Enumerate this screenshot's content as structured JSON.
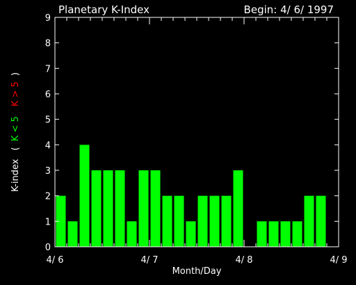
{
  "chart_data": {
    "type": "bar",
    "title": "Planetary K-Index",
    "begin_label": "Begin:  4/  6/ 1997",
    "xlabel": "Month/Day",
    "ylabel": "K-index",
    "legend_open": "(",
    "legend_close": ")",
    "legend": [
      {
        "label": "K < 5",
        "color": "#00ff00"
      },
      {
        "label": "K > 5",
        "color": "#ff0000"
      }
    ],
    "ylim": [
      0,
      9
    ],
    "yticks": [
      "0",
      "1",
      "2",
      "3",
      "4",
      "5",
      "6",
      "7",
      "8",
      "9"
    ],
    "xlim": [
      0,
      24
    ],
    "xticks": [
      {
        "pos": 0,
        "label": "4/ 6"
      },
      {
        "pos": 8,
        "label": "4/ 7"
      },
      {
        "pos": 16,
        "label": "4/ 8"
      },
      {
        "pos": 24,
        "label": "4/ 9"
      }
    ],
    "bar_color": "#00ff00",
    "values": [
      2,
      1,
      4,
      3,
      3,
      3,
      1,
      3,
      3,
      2,
      2,
      1,
      2,
      2,
      2,
      3,
      0,
      1,
      1,
      1,
      1,
      2,
      2,
      0
    ]
  },
  "colors": {
    "background": "#000000",
    "axes": "#ffffff",
    "text": "#ffffff",
    "bars": "#00ff00"
  }
}
